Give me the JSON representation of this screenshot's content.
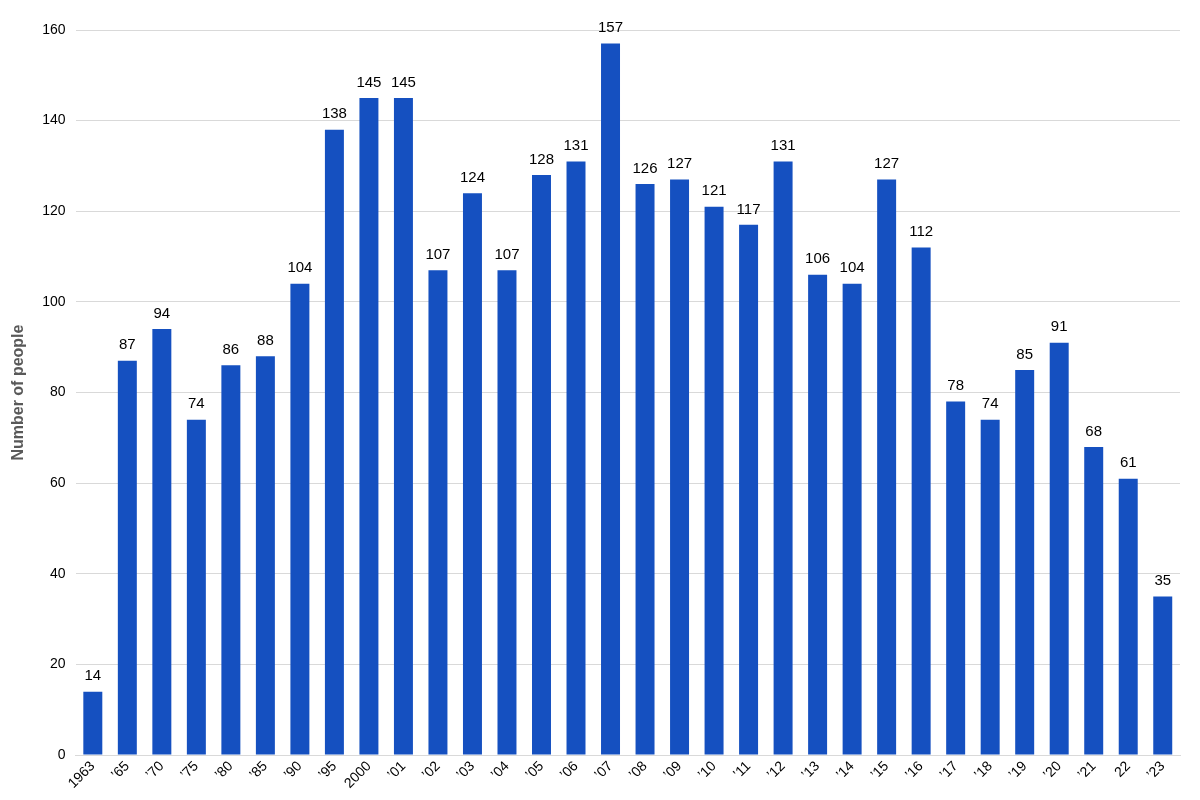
{
  "chart_data": {
    "type": "bar",
    "y_label": "Number of people",
    "categories": [
      "1963",
      "’65",
      "’70",
      "’75",
      "’80",
      "’85",
      "’90",
      "’95",
      "2000",
      "’01",
      "’02",
      "’03",
      "’04",
      "’05",
      "’06",
      "’07",
      "’08",
      "’09",
      "’10",
      "’11",
      "’12",
      "’13",
      "’14",
      "’15",
      "’16",
      "’17",
      "’18",
      "’19",
      "’20",
      "’21",
      "22",
      "’23"
    ],
    "values": [
      14,
      87,
      94,
      74,
      86,
      88,
      104,
      138,
      145,
      145,
      107,
      124,
      107,
      128,
      131,
      157,
      126,
      127,
      121,
      117,
      131,
      106,
      104,
      127,
      112,
      78,
      74,
      85,
      91,
      68,
      61,
      35
    ],
    "color": "#1550c0",
    "ylim": [
      0,
      160
    ],
    "yticks": [
      0,
      20,
      40,
      60,
      80,
      100,
      120,
      140,
      160
    ],
    "grid": true,
    "data_labels": true
  }
}
